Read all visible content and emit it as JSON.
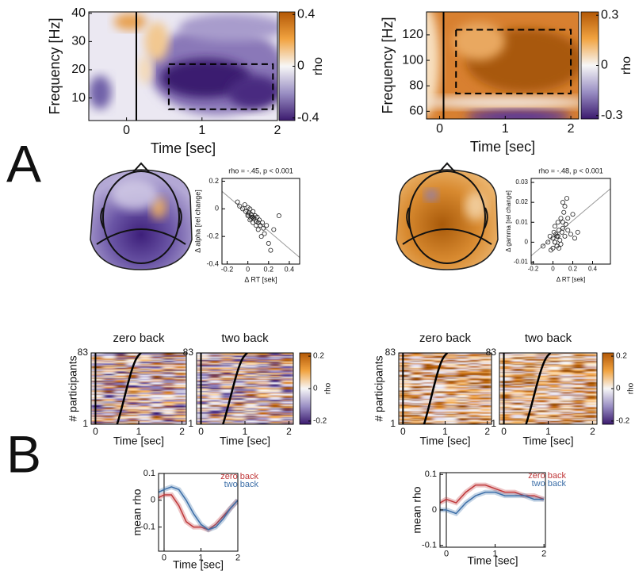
{
  "panel_labels": [
    "A",
    "B"
  ],
  "chart_data": [
    {
      "type": "heatmap",
      "xlabel": "Time [sec]",
      "ylabel": "Frequency [Hz]",
      "xlim": [
        -0.5,
        2
      ],
      "ylim": [
        2,
        40.5
      ],
      "xticks": [
        0,
        1,
        2
      ],
      "yticks": [
        10,
        20,
        30,
        40
      ],
      "colorbar": {
        "label": "rho",
        "lim": [
          -0.42,
          0.42
        ],
        "ticks": [
          0.4,
          0,
          -0.4
        ]
      }
    },
    {
      "type": "heatmap",
      "xlabel": "Time [sec]",
      "ylabel": "Frequency [Hz]",
      "xlim": [
        -0.2,
        2.12
      ],
      "ylim": [
        54,
        138
      ],
      "xticks": [
        0,
        1,
        2
      ],
      "yticks": [
        60,
        80,
        100,
        120
      ],
      "colorbar": {
        "label": "rho",
        "lim": [
          -0.32,
          0.32
        ],
        "ticks": [
          0.3,
          0,
          -0.3
        ]
      }
    },
    {
      "type": "scatter",
      "title": "rho = -.45, p < 0.001",
      "xlabel": "Δ RT [sek]",
      "ylabel": "Δ alpha [rel change]",
      "xlim": [
        -0.25,
        0.5
      ],
      "ylim": [
        -0.4,
        0.22
      ],
      "xticks": [
        -0.2,
        0,
        0.2,
        0.4
      ],
      "yticks": [
        0.2,
        0,
        -0.2,
        -0.4
      ],
      "x": [
        -0.1,
        -0.08,
        -0.05,
        -0.03,
        -0.02,
        0,
        0,
        0.01,
        0.02,
        0.02,
        0.03,
        0.04,
        0.05,
        0.05,
        0.06,
        0.07,
        0.08,
        0.08,
        0.09,
        0.1,
        0.1,
        0.11,
        0.12,
        0.13,
        0.14,
        0.15,
        0.16,
        0.18,
        0.2,
        0.22,
        0.25,
        0.3,
        0.05,
        0.0,
        0.03
      ],
      "values": [
        0.05,
        0.02,
        0.0,
        0.03,
        -0.02,
        0.01,
        -0.05,
        -0.03,
        0.0,
        -0.08,
        -0.04,
        -0.06,
        -0.02,
        -0.1,
        -0.07,
        -0.05,
        -0.09,
        -0.12,
        -0.06,
        -0.1,
        -0.15,
        -0.08,
        -0.12,
        -0.2,
        -0.1,
        -0.14,
        -0.18,
        -0.12,
        -0.25,
        -0.3,
        -0.15,
        -0.05,
        -0.06,
        -0.04,
        -0.07
      ]
    },
    {
      "type": "scatter",
      "title": "rho = -.48, p < 0.001",
      "xlabel": "Δ RT [sek]",
      "ylabel": "Δ gamma [rel change]",
      "xlim": [
        -0.22,
        0.58
      ],
      "ylim": [
        -0.011,
        0.032
      ],
      "xticks": [
        -0.2,
        0,
        0.2,
        0.4
      ],
      "yticks": [
        0.03,
        0.02,
        0.01,
        0,
        -0.01
      ],
      "x": [
        -0.1,
        -0.05,
        -0.03,
        -0.02,
        0,
        0,
        0.01,
        0.02,
        0.02,
        0.03,
        0.04,
        0.05,
        0.05,
        0.06,
        0.07,
        0.08,
        0.08,
        0.09,
        0.1,
        0.1,
        0.11,
        0.12,
        0.13,
        0.14,
        0.15,
        0.15,
        0.18,
        0.2,
        0.22,
        0.25,
        0.02,
        0.06,
        0.1,
        0.04,
        0.12
      ],
      "values": [
        -0.002,
        0.0,
        0.003,
        -0.004,
        0.002,
        -0.003,
        0.005,
        0.0,
        0.008,
        0.004,
        -0.002,
        0.01,
        0.003,
        0.006,
        0.001,
        0.012,
        -0.001,
        0.005,
        0.02,
        0.007,
        0.015,
        0.003,
        0.009,
        0.022,
        0.006,
        0.012,
        0.004,
        0.014,
        0.002,
        0.005,
        0.0,
        -0.003,
        0.01,
        0.003,
        0.018
      ]
    },
    {
      "type": "heatmap",
      "title": "zero back",
      "xlabel": "Time [sec]",
      "ylabel": "# participants",
      "xlim": [
        -0.1,
        2.1
      ],
      "ylim": [
        1,
        83
      ],
      "xticks": [
        0,
        1,
        2
      ],
      "yticks": [
        83,
        1
      ]
    },
    {
      "type": "heatmap",
      "title": "two back",
      "xlabel": "Time [sec]",
      "xlim": [
        -0.1,
        2.1
      ],
      "ylim": [
        1,
        83
      ],
      "xticks": [
        0,
        1,
        2
      ],
      "yticks": [
        83,
        1
      ],
      "colorbar": {
        "label": "rho",
        "lim": [
          -0.22,
          0.22
        ],
        "ticks": [
          0.2,
          0,
          -0.2
        ]
      }
    },
    {
      "type": "heatmap",
      "title": "zero back",
      "xlabel": "Time [sec]",
      "ylabel": "# participants",
      "xlim": [
        -0.1,
        2.1
      ],
      "ylim": [
        1,
        83
      ],
      "xticks": [
        0,
        1,
        2
      ],
      "yticks": [
        83,
        1
      ]
    },
    {
      "type": "heatmap",
      "title": "two back",
      "xlabel": "Time [sec]",
      "xlim": [
        -0.1,
        2.1
      ],
      "ylim": [
        1,
        83
      ],
      "xticks": [
        0,
        1,
        2
      ],
      "yticks": [
        83,
        1
      ],
      "colorbar": {
        "label": "rho",
        "lim": [
          -0.22,
          0.22
        ],
        "ticks": [
          0.2,
          0,
          -0.2
        ]
      }
    },
    {
      "type": "line",
      "xlabel": "Time [sec]",
      "ylabel": "mean rho",
      "xlim": [
        -0.15,
        2
      ],
      "ylim": [
        -0.19,
        0.1
      ],
      "xticks": [
        0,
        1,
        2
      ],
      "yticks": [
        0.1,
        0,
        -0.1
      ],
      "x": [
        -0.15,
        0,
        0.2,
        0.4,
        0.6,
        0.8,
        1.0,
        1.2,
        1.4,
        1.6,
        1.8,
        2.0
      ],
      "series": [
        {
          "name": "zero back",
          "color": "#c0393b",
          "values": [
            0.01,
            0.02,
            0.02,
            -0.02,
            -0.08,
            -0.1,
            -0.1,
            -0.11,
            -0.09,
            -0.06,
            -0.03,
            0.0
          ]
        },
        {
          "name": "two back",
          "color": "#3d6fa8",
          "values": [
            0.03,
            0.04,
            0.05,
            0.04,
            0.0,
            -0.05,
            -0.09,
            -0.11,
            -0.1,
            -0.07,
            -0.03,
            0.0
          ]
        }
      ]
    },
    {
      "type": "line",
      "xlabel": "Time [sec]",
      "ylabel": "mean rho",
      "xlim": [
        -0.13,
        2.03
      ],
      "ylim": [
        -0.105,
        0.105
      ],
      "xticks": [
        0,
        1,
        2
      ],
      "yticks": [
        0.1,
        0,
        -0.1
      ],
      "x": [
        -0.13,
        0,
        0.2,
        0.4,
        0.6,
        0.8,
        1.0,
        1.2,
        1.4,
        1.6,
        1.8,
        2.0
      ],
      "series": [
        {
          "name": "zero back",
          "color": "#c0393b",
          "values": [
            0.02,
            0.03,
            0.02,
            0.05,
            0.07,
            0.07,
            0.06,
            0.05,
            0.05,
            0.04,
            0.04,
            0.03
          ]
        },
        {
          "name": "two back",
          "color": "#3d6fa8",
          "values": [
            0.0,
            0.0,
            -0.01,
            0.02,
            0.04,
            0.05,
            0.05,
            0.04,
            0.04,
            0.04,
            0.03,
            0.03
          ]
        }
      ]
    }
  ]
}
